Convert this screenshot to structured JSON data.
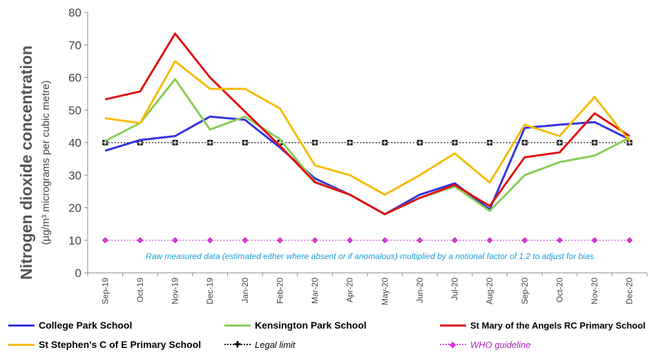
{
  "chart_data": {
    "type": "line",
    "ylabel": "Nitrogen dioxide concentration",
    "ylabel_sub": "(µg/m³ micrograms per cubic metre)",
    "ylim": [
      0,
      80
    ],
    "yticks": [
      0,
      10,
      20,
      30,
      40,
      50,
      60,
      70,
      80
    ],
    "categories": [
      "Sep-19",
      "Oct-19",
      "Nov-19",
      "Dec-19",
      "Jan-20",
      "Feb-20",
      "Mar-20",
      "Apr-20",
      "May-20",
      "Jun-20",
      "Jul-20",
      "Aug-20",
      "Sep-20",
      "Oct-20",
      "Nov-20",
      "Dec-20"
    ],
    "annotation": "Raw measured data (estimated either where absent or if anomalous) multiplied by a notional factor of 1.2 to adjust for bias.",
    "grid": false,
    "legend_position": "bottom",
    "series": [
      {
        "name": "College Park School",
        "color": "#3333e0",
        "values": [
          37.5,
          40.8,
          42,
          48,
          47,
          38.5,
          29,
          24,
          18,
          24,
          27.5,
          19.5,
          44.5,
          45.5,
          46.3,
          41
        ]
      },
      {
        "name": "Kensington Park School",
        "color": "#88cc55",
        "values": [
          40.5,
          46,
          59.5,
          44,
          48,
          41,
          28,
          24,
          18,
          23,
          26.5,
          19,
          30,
          34,
          36,
          41.5
        ]
      },
      {
        "name": "St Mary of the Angels RC Primary School",
        "color": "#e01010",
        "values": [
          53.3,
          55.7,
          73.5,
          60,
          49.5,
          39,
          27.8,
          24,
          18,
          23,
          27,
          20.5,
          35.5,
          37,
          49,
          42
        ]
      },
      {
        "name": "St Stephen's C of E Primary School",
        "color": "#f5bb00",
        "values": [
          47.5,
          46,
          65,
          56.5,
          56.5,
          50.5,
          33,
          30,
          24,
          30,
          36.7,
          27.7,
          45.5,
          42,
          54,
          40.5
        ]
      }
    ],
    "reference_lines": [
      {
        "name": "Legal limit",
        "value": 40,
        "color": "#000000",
        "marker_color": "#000000"
      },
      {
        "name": "WHO guideline",
        "value": 10,
        "color": "#cc44cc",
        "marker_color": "#dd33dd"
      }
    ]
  }
}
